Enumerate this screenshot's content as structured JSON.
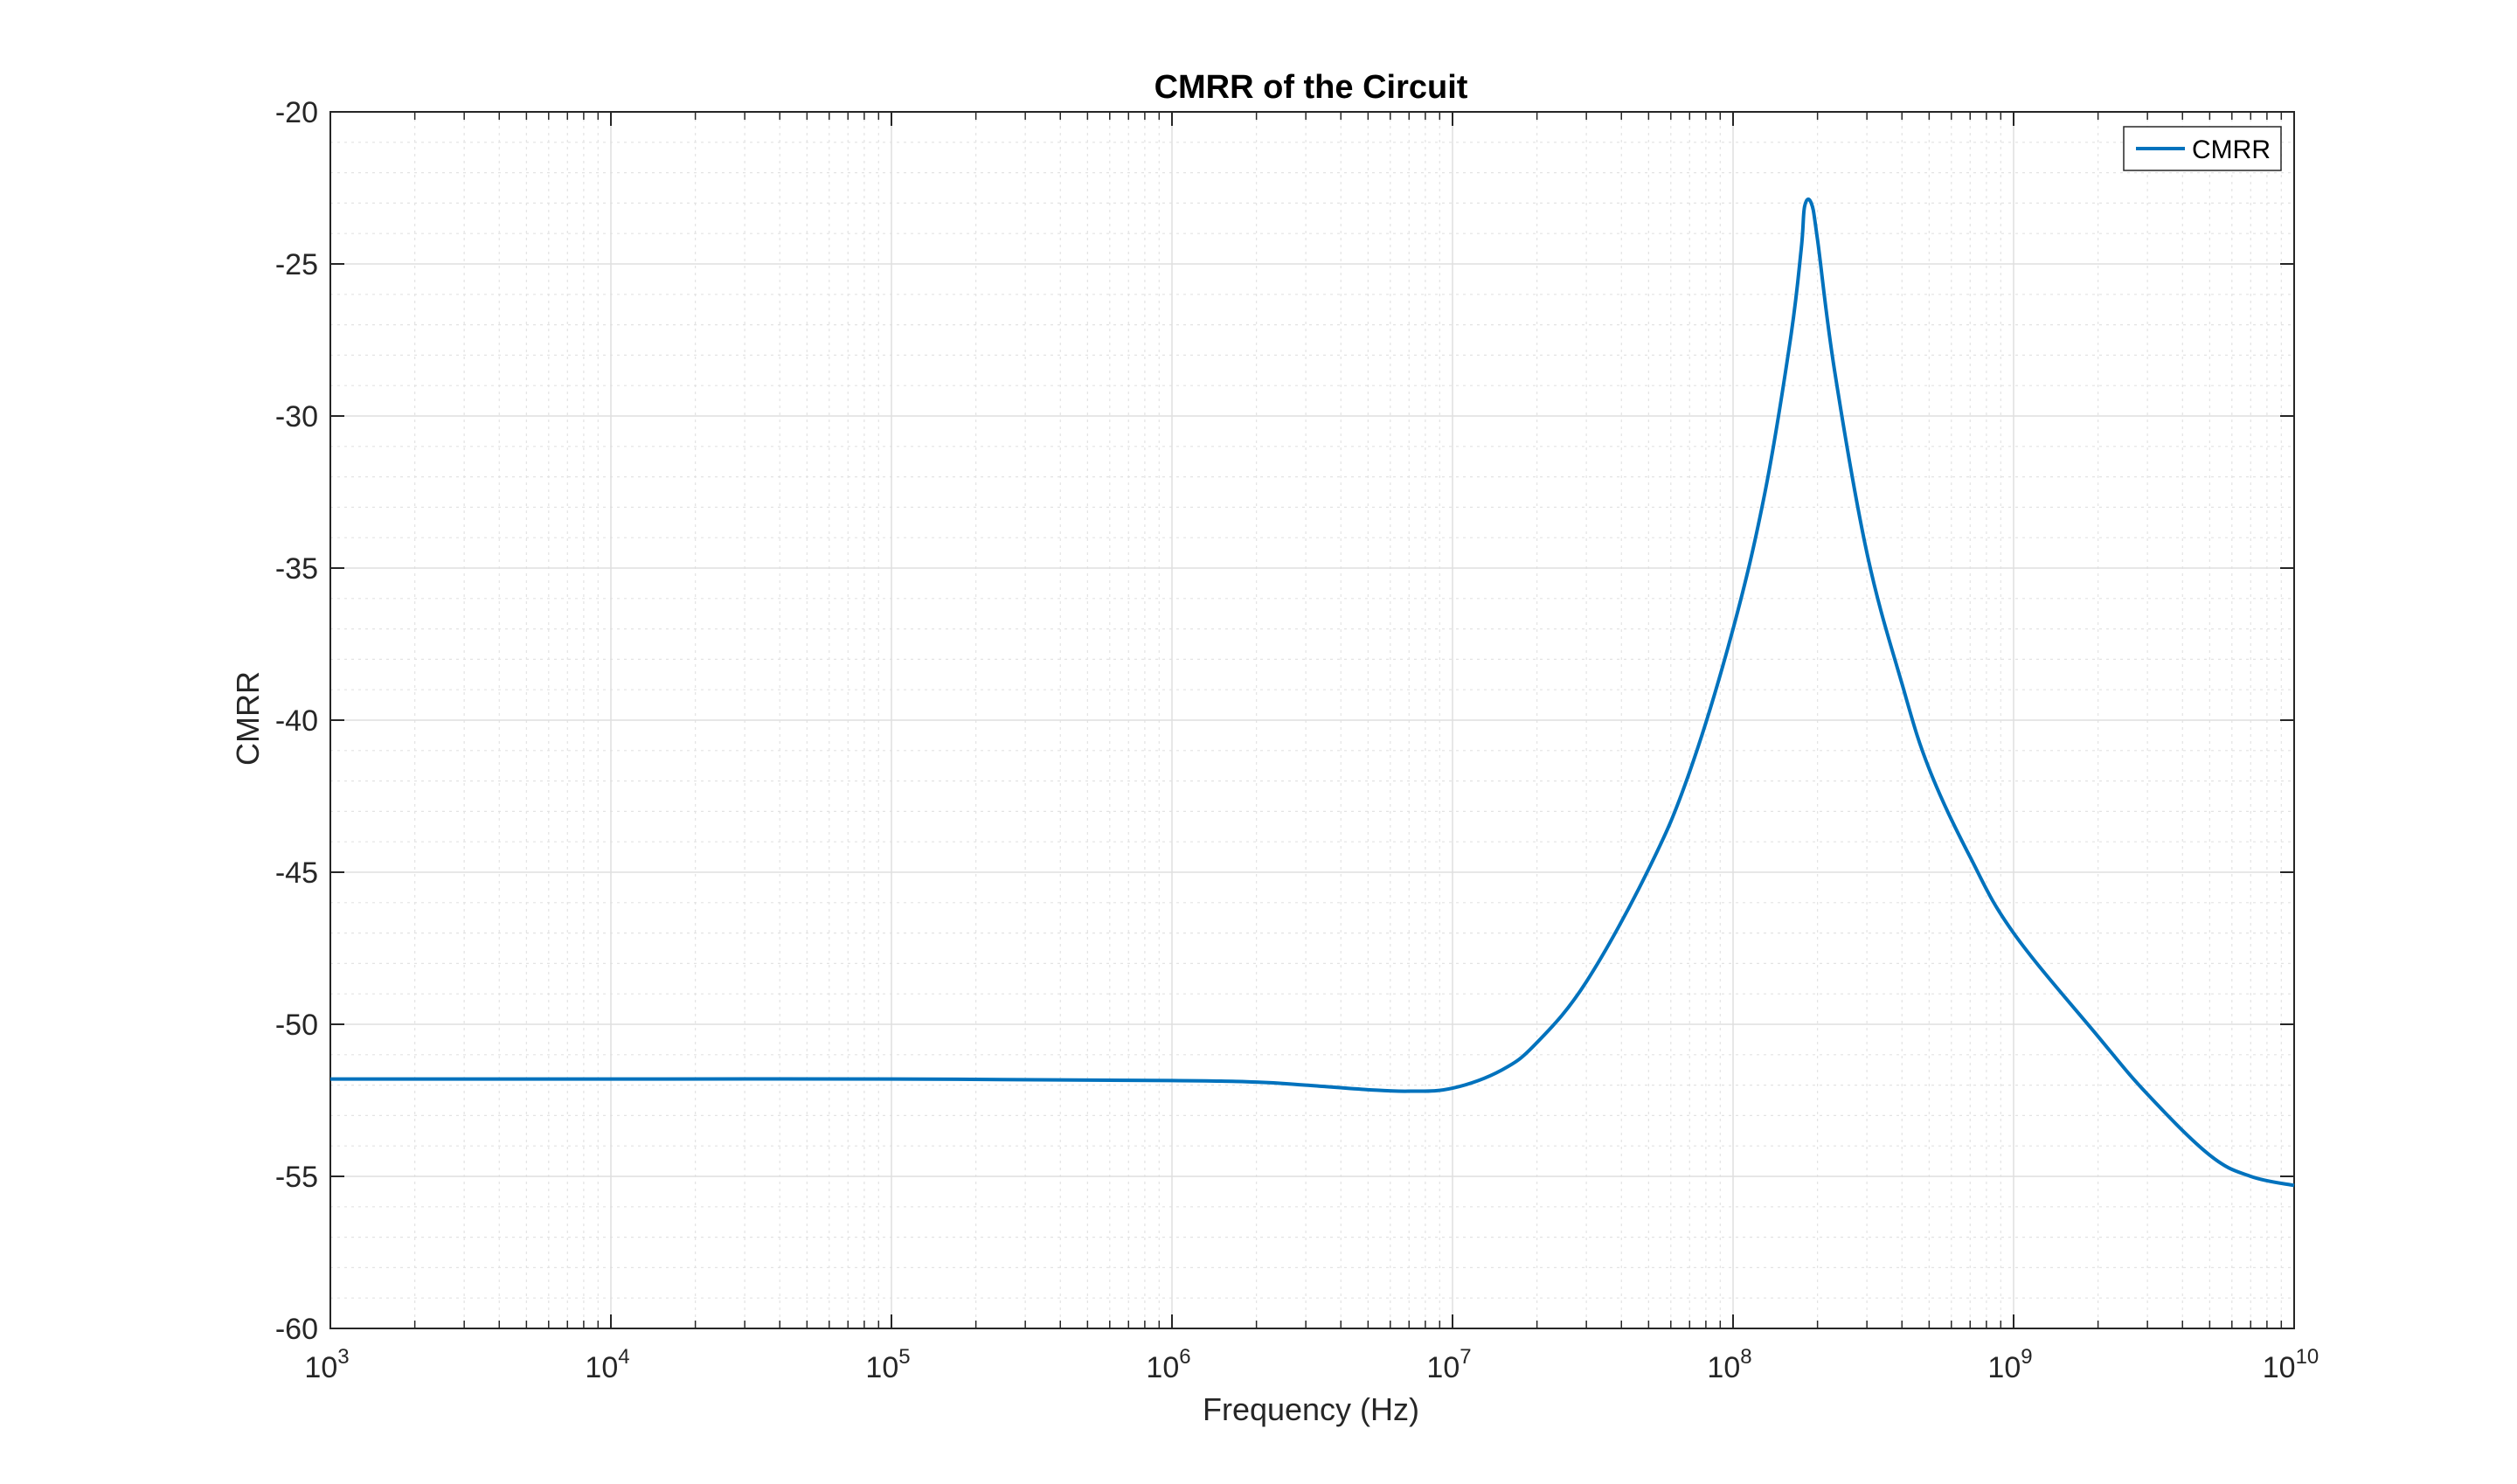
{
  "chart_data": {
    "type": "line",
    "title": "CMRR of the Circuit",
    "xlabel": "Frequency (Hz)",
    "ylabel": "CMRR",
    "xscale": "log",
    "xlim": [
      1000,
      10000000000
    ],
    "ylim": [
      -60,
      -20
    ],
    "x_tick_base": "10",
    "x_tick_exponents": [
      "3",
      "4",
      "5",
      "6",
      "7",
      "8",
      "9",
      "10"
    ],
    "y_ticks": [
      "-20",
      "-25",
      "-30",
      "-35",
      "-40",
      "-45",
      "-50",
      "-55",
      "-60"
    ],
    "grid": true,
    "minor_grid": true,
    "legend_placement": "top-right",
    "series": [
      {
        "name": "CMRR",
        "color": "#0072BD",
        "x": [
          1000,
          10000,
          100000,
          1000000,
          2000000,
          3000000,
          5000000,
          7000000,
          10000000,
          15000000,
          20000000,
          30000000,
          50000000,
          70000000,
          100000000,
          130000000,
          160000000,
          175000000,
          180000000,
          190000000,
          200000000,
          230000000,
          300000000,
          400000000,
          500000000,
          700000000,
          1000000000,
          2000000000,
          3000000000,
          5000000000,
          7000000000,
          10000000000
        ],
        "y": [
          -51.8,
          -51.8,
          -51.8,
          -51.85,
          -51.9,
          -52.0,
          -52.15,
          -52.2,
          -52.1,
          -51.5,
          -50.6,
          -48.6,
          -44.9,
          -41.7,
          -37.0,
          -32.5,
          -27.5,
          -24.5,
          -23.1,
          -23.0,
          -24.2,
          -28.5,
          -34.5,
          -38.8,
          -41.6,
          -44.5,
          -47.0,
          -50.4,
          -52.3,
          -54.3,
          -55.0,
          -55.3
        ]
      }
    ]
  }
}
